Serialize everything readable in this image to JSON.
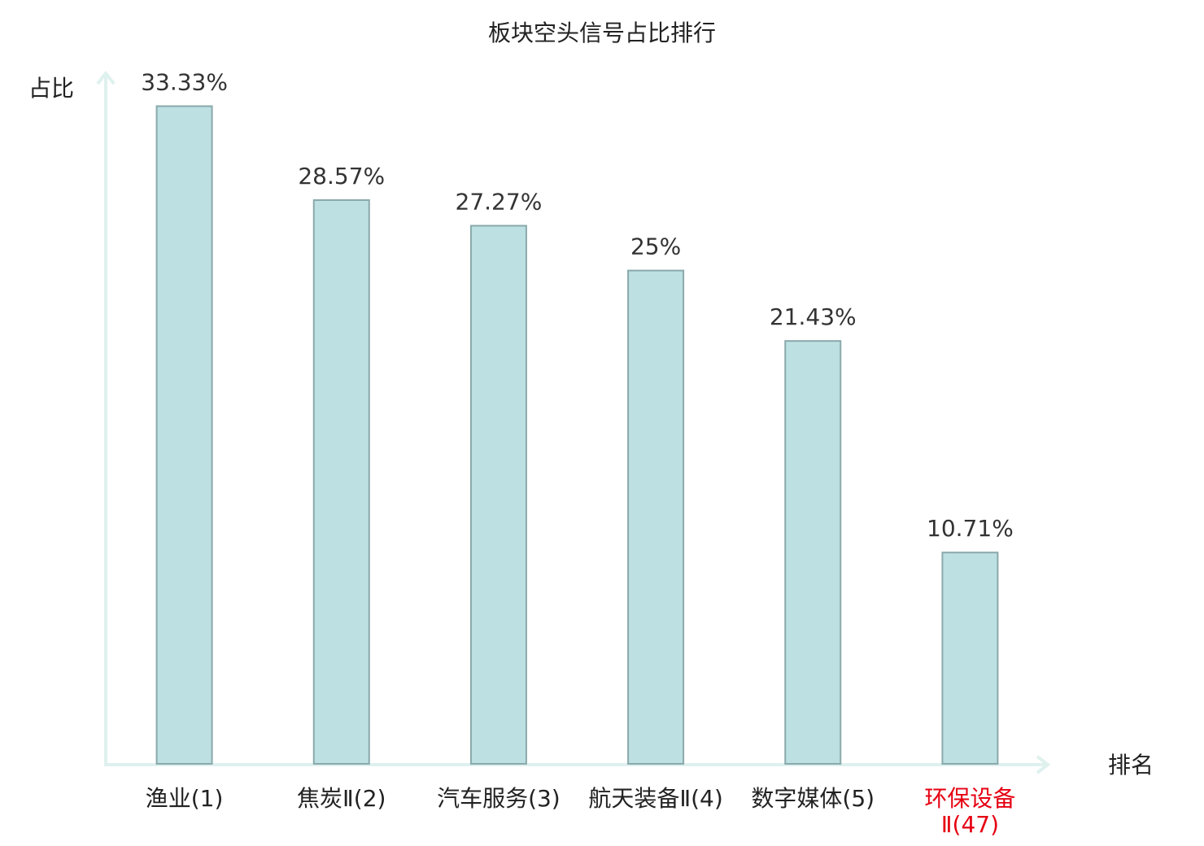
{
  "chart_data": {
    "type": "bar",
    "title": "板块空头信号占比排行",
    "y_label": "占比",
    "x_label": "排名",
    "categories": [
      "渔业(1)",
      "焦炭Ⅱ(2)",
      "汽车服务(3)",
      "航天装备Ⅱ(4)",
      "数字媒体(5)",
      "环保设备Ⅱ(47)"
    ],
    "values": [
      33.33,
      28.57,
      27.27,
      25,
      21.43,
      10.71
    ],
    "value_labels": [
      "33.33%",
      "28.57%",
      "27.27%",
      "25%",
      "21.43%",
      "10.71%"
    ],
    "color": "#bde0e3",
    "category_colors": [
      "#222222",
      "#222222",
      "#222222",
      "#222222",
      "#222222",
      "#e60012"
    ],
    "ylim": [
      0,
      35
    ]
  }
}
